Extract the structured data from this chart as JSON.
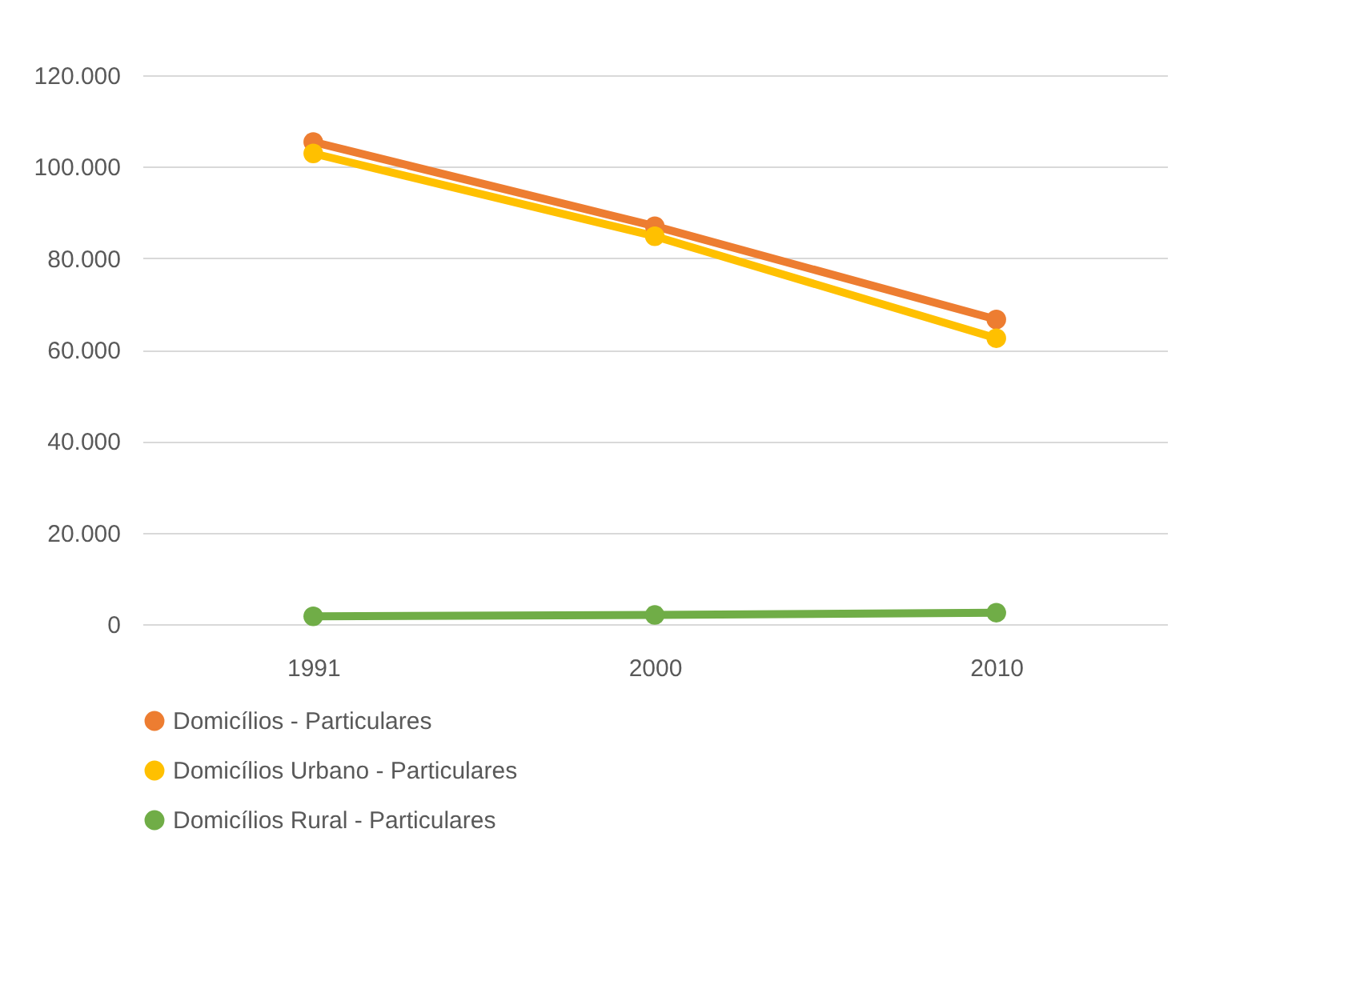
{
  "chart_data": {
    "type": "line",
    "categories": [
      "1991",
      "2000",
      "2010"
    ],
    "series": [
      {
        "name": "Domicílios - Particulares",
        "color": "#ed7d31",
        "values": [
          105400,
          87000,
          66600
        ]
      },
      {
        "name": "Domicílios Urbano - Particulares",
        "color": "#ffc000",
        "values": [
          102900,
          84800,
          62500
        ]
      },
      {
        "name": "Domicílios Rural - Particulares",
        "color": "#70ad47",
        "values": [
          1700,
          2000,
          2500
        ]
      }
    ],
    "ylim": [
      0,
      120000
    ],
    "yticks": [
      {
        "value": 0,
        "label": "0"
      },
      {
        "value": 20000,
        "label": "20.000"
      },
      {
        "value": 40000,
        "label": "40.000"
      },
      {
        "value": 60000,
        "label": "60.000"
      },
      {
        "value": 80000,
        "label": "80.000"
      },
      {
        "value": 100000,
        "label": "100.000"
      },
      {
        "value": 120000,
        "label": "120.000"
      }
    ],
    "grid": "y",
    "legend": "bottom",
    "marker": "circle",
    "line_style": "solid"
  }
}
